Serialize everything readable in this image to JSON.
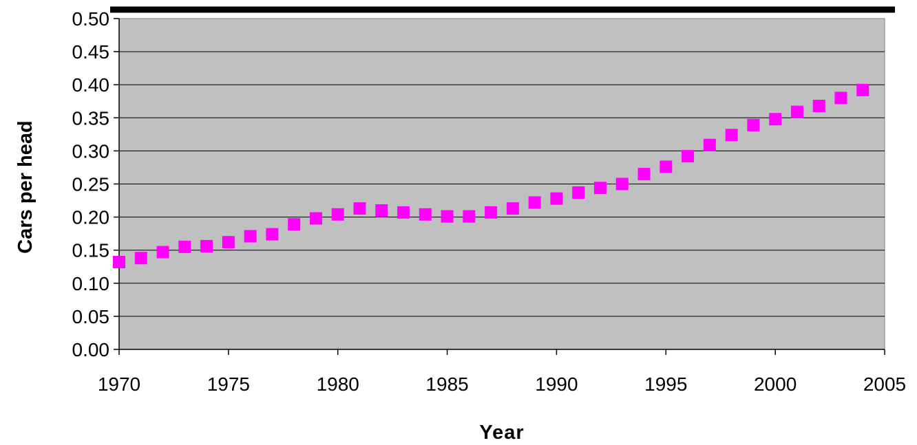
{
  "chart_data": {
    "type": "scatter",
    "title": "",
    "xlabel": "Year",
    "ylabel": "Cars per head",
    "xlim": [
      1970,
      2005
    ],
    "ylim": [
      0.0,
      0.5
    ],
    "x_ticks": [
      "1970",
      "1975",
      "1980",
      "1985",
      "1990",
      "1995",
      "2000",
      "2005"
    ],
    "y_ticks": [
      "0.00",
      "0.05",
      "0.10",
      "0.15",
      "0.20",
      "0.25",
      "0.30",
      "0.35",
      "0.40",
      "0.45",
      "0.50"
    ],
    "grid": "horizontal",
    "legend": "none",
    "colors": {
      "plot_background": "#c0c0c0",
      "marker": "#ff00ff",
      "gridline": "#000000"
    },
    "marker": "square",
    "series": [
      {
        "x": [
          1970,
          1971,
          1972,
          1973,
          1974,
          1975,
          1976,
          1977,
          1978,
          1979,
          1980,
          1981,
          1982,
          1983,
          1984,
          1985,
          1986,
          1987,
          1988,
          1989,
          1990,
          1991,
          1992,
          1993,
          1994,
          1995,
          1996,
          1997,
          1998,
          1999,
          2000,
          2001,
          2002,
          2003,
          2004
        ],
        "values": [
          0.132,
          0.138,
          0.147,
          0.155,
          0.156,
          0.162,
          0.171,
          0.174,
          0.189,
          0.198,
          0.204,
          0.213,
          0.21,
          0.207,
          0.204,
          0.201,
          0.201,
          0.207,
          0.213,
          0.222,
          0.228,
          0.237,
          0.244,
          0.25,
          0.265,
          0.276,
          0.292,
          0.309,
          0.324,
          0.339,
          0.348,
          0.359,
          0.368,
          0.38,
          0.392
        ]
      }
    ]
  },
  "texts": {
    "xlabel": "Year",
    "ylabel": "Cars per head"
  }
}
